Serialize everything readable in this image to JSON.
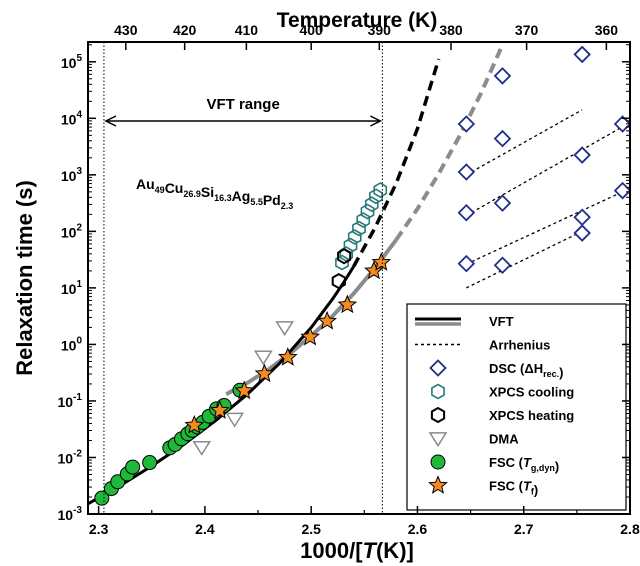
{
  "chart_data": {
    "type": "scatter",
    "xlabel": "1000/[T(K)]",
    "ylabel": "Relaxation time (s)",
    "top_axis_label": "Temperature (K)",
    "xlim": [
      2.29,
      2.8
    ],
    "ylim_log10": [
      -3,
      5.35
    ],
    "x_ticks": [
      2.3,
      2.4,
      2.5,
      2.6,
      2.7,
      2.8
    ],
    "x_tick_labels": [
      "2.3",
      "2.4",
      "2.5",
      "2.6",
      "2.7",
      "2.8"
    ],
    "y_ticks_log10": [
      -3,
      -2,
      -1,
      0,
      1,
      2,
      3,
      4,
      5
    ],
    "y_tick_labels": [
      {
        "base": "10",
        "exp": "-3"
      },
      {
        "base": "10",
        "exp": "-2"
      },
      {
        "base": "10",
        "exp": "-1"
      },
      {
        "base": "10",
        "exp": "0"
      },
      {
        "base": "10",
        "exp": "1"
      },
      {
        "base": "10",
        "exp": "2"
      },
      {
        "base": "10",
        "exp": "3"
      },
      {
        "base": "10",
        "exp": "4"
      },
      {
        "base": "10",
        "exp": "5"
      }
    ],
    "top_ticks_K": [
      430,
      420,
      410,
      400,
      390,
      380,
      370,
      360
    ],
    "top_tick_labels": [
      "430",
      "420",
      "410",
      "400",
      "390",
      "380",
      "370",
      "360"
    ],
    "vft_range": {
      "label": "VFT range",
      "x_min": 2.305,
      "x_max": 2.567
    },
    "composition": [
      {
        "base": "Au",
        "sub": "49"
      },
      {
        "base": "Cu",
        "sub": "26.9"
      },
      {
        "base": "Si",
        "sub": "16.3"
      },
      {
        "base": "Ag",
        "sub": "5.5"
      },
      {
        "base": "Pd",
        "sub": "2.3"
      }
    ],
    "legend_position": "bottom-right",
    "colors": {
      "vft_black": "#000000",
      "vft_gray": "#8c8c8c",
      "dsc": "#1f2f8a",
      "xpcs_cooling": "#2a7a7a",
      "xpcs_heating": "#000000",
      "dma": "#8a8a8a",
      "fsc_tg": "#1fb83a",
      "fsc_tf": "#f58a20"
    },
    "series": [
      {
        "name": "VFT",
        "kind": "curve",
        "style": "solid-black",
        "points": [
          [
            2.29,
            -2.82
          ],
          [
            2.32,
            -2.5
          ],
          [
            2.35,
            -2.15
          ],
          [
            2.38,
            -1.77
          ],
          [
            2.41,
            -1.35
          ],
          [
            2.44,
            -0.88
          ],
          [
            2.47,
            -0.34
          ],
          [
            2.5,
            0.3
          ],
          [
            2.52,
            0.8
          ],
          [
            2.53,
            1.08
          ],
          [
            2.54,
            1.38
          ]
        ]
      },
      {
        "name": "VFT",
        "kind": "curve",
        "style": "dashed-black",
        "points": [
          [
            2.54,
            1.38
          ],
          [
            2.56,
            2.06
          ],
          [
            2.58,
            2.85
          ],
          [
            2.6,
            3.82
          ],
          [
            2.62,
            5.05
          ]
        ]
      },
      {
        "name": "VFT",
        "kind": "curve",
        "style": "solid-gray",
        "points": [
          [
            2.42,
            -0.88
          ],
          [
            2.44,
            -0.68
          ],
          [
            2.46,
            -0.44
          ],
          [
            2.48,
            -0.16
          ],
          [
            2.5,
            0.15
          ],
          [
            2.52,
            0.5
          ],
          [
            2.54,
            0.9
          ],
          [
            2.56,
            1.35
          ],
          [
            2.58,
            1.85
          ]
        ]
      },
      {
        "name": "VFT",
        "kind": "curve",
        "style": "dashed-gray",
        "points": [
          [
            2.58,
            1.85
          ],
          [
            2.6,
            2.4
          ],
          [
            2.62,
            3.02
          ],
          [
            2.64,
            3.7
          ],
          [
            2.66,
            4.45
          ],
          [
            2.68,
            5.3
          ]
        ]
      },
      {
        "name": "Arrhenius",
        "kind": "line",
        "style": "dotted-black",
        "segments": [
          [
            [
              2.646,
              3.0
            ],
            [
              2.755,
              4.15
            ]
          ],
          [
            [
              2.646,
              2.28
            ],
            [
              2.793,
              3.85
            ]
          ],
          [
            [
              2.646,
              1.42
            ],
            [
              2.793,
              2.7
            ]
          ],
          [
            [
              2.646,
              1.0
            ],
            [
              2.755,
              2.0
            ]
          ]
        ]
      },
      {
        "name": "DSC (ΔH_rec.)",
        "kind": "markers",
        "marker": "diamond",
        "points": [
          [
            2.646,
            3.9
          ],
          [
            2.646,
            3.05
          ],
          [
            2.646,
            2.33
          ],
          [
            2.646,
            1.43
          ],
          [
            2.68,
            4.75
          ],
          [
            2.68,
            3.64
          ],
          [
            2.68,
            2.5
          ],
          [
            2.68,
            1.4
          ],
          [
            2.755,
            5.13
          ],
          [
            2.755,
            3.35
          ],
          [
            2.755,
            2.25
          ],
          [
            2.755,
            1.97
          ],
          [
            2.793,
            3.9
          ],
          [
            2.793,
            2.72
          ]
        ]
      },
      {
        "name": "XPCS cooling",
        "kind": "markers",
        "marker": "hexagon",
        "points": [
          [
            2.529,
            1.45
          ],
          [
            2.533,
            1.6
          ],
          [
            2.537,
            1.75
          ],
          [
            2.541,
            1.9
          ],
          [
            2.545,
            2.05
          ],
          [
            2.549,
            2.2
          ],
          [
            2.553,
            2.35
          ],
          [
            2.557,
            2.48
          ],
          [
            2.561,
            2.62
          ],
          [
            2.565,
            2.73
          ]
        ]
      },
      {
        "name": "XPCS heating",
        "kind": "markers",
        "marker": "hexagon",
        "points": [
          [
            2.531,
            1.56
          ],
          [
            2.526,
            1.12
          ]
        ]
      },
      {
        "name": "DMA",
        "kind": "markers",
        "marker": "triangle-down",
        "points": [
          [
            2.397,
            -1.82
          ],
          [
            2.428,
            -1.32
          ],
          [
            2.455,
            -0.22
          ],
          [
            2.475,
            0.3
          ]
        ]
      },
      {
        "name": "FSC (T_g,dyn)",
        "kind": "markers",
        "marker": "circle",
        "points": [
          [
            2.303,
            -2.72
          ],
          [
            2.312,
            -2.55
          ],
          [
            2.318,
            -2.43
          ],
          [
            2.327,
            -2.29
          ],
          [
            2.332,
            -2.17
          ],
          [
            2.348,
            -2.09
          ],
          [
            2.367,
            -1.83
          ],
          [
            2.372,
            -1.77
          ],
          [
            2.378,
            -1.67
          ],
          [
            2.384,
            -1.58
          ],
          [
            2.388,
            -1.52
          ],
          [
            2.393,
            -1.46
          ],
          [
            2.398,
            -1.38
          ],
          [
            2.404,
            -1.27
          ],
          [
            2.411,
            -1.14
          ],
          [
            2.418,
            -1.08
          ],
          [
            2.433,
            -0.81
          ]
        ]
      },
      {
        "name": "FSC (T_f)",
        "kind": "markers",
        "marker": "star",
        "points": [
          [
            2.39,
            -1.43
          ],
          [
            2.414,
            -1.17
          ],
          [
            2.437,
            -0.82
          ],
          [
            2.456,
            -0.52
          ],
          [
            2.478,
            -0.23
          ],
          [
            2.499,
            0.13
          ],
          [
            2.515,
            0.41
          ],
          [
            2.534,
            0.7
          ],
          [
            2.559,
            1.3
          ],
          [
            2.566,
            1.45
          ]
        ]
      }
    ],
    "legend": [
      {
        "label_parts": [
          {
            "t": "VFT"
          }
        ],
        "symbol": "vft"
      },
      {
        "label_parts": [
          {
            "t": "Arrhenius"
          }
        ],
        "symbol": "arrhenius"
      },
      {
        "label_parts": [
          {
            "t": "DSC (ΔH"
          },
          {
            "t": "rec.",
            "sub": true
          },
          {
            "t": ")"
          }
        ],
        "symbol": "diamond"
      },
      {
        "label_parts": [
          {
            "t": "XPCS cooling"
          }
        ],
        "symbol": "hex-teal"
      },
      {
        "label_parts": [
          {
            "t": "XPCS heating"
          }
        ],
        "symbol": "hex-black"
      },
      {
        "label_parts": [
          {
            "t": "DMA"
          }
        ],
        "symbol": "triangle"
      },
      {
        "label_parts": [
          {
            "t": "FSC ("
          },
          {
            "t": "T",
            "italic": true
          },
          {
            "t": "g,dyn",
            "sub": true
          },
          {
            "t": ")"
          }
        ],
        "symbol": "circle"
      },
      {
        "label_parts": [
          {
            "t": "FSC ("
          },
          {
            "t": "T",
            "italic": true
          },
          {
            "t": "f",
            "sub": true
          },
          {
            "t": ")"
          }
        ],
        "symbol": "star"
      }
    ]
  }
}
